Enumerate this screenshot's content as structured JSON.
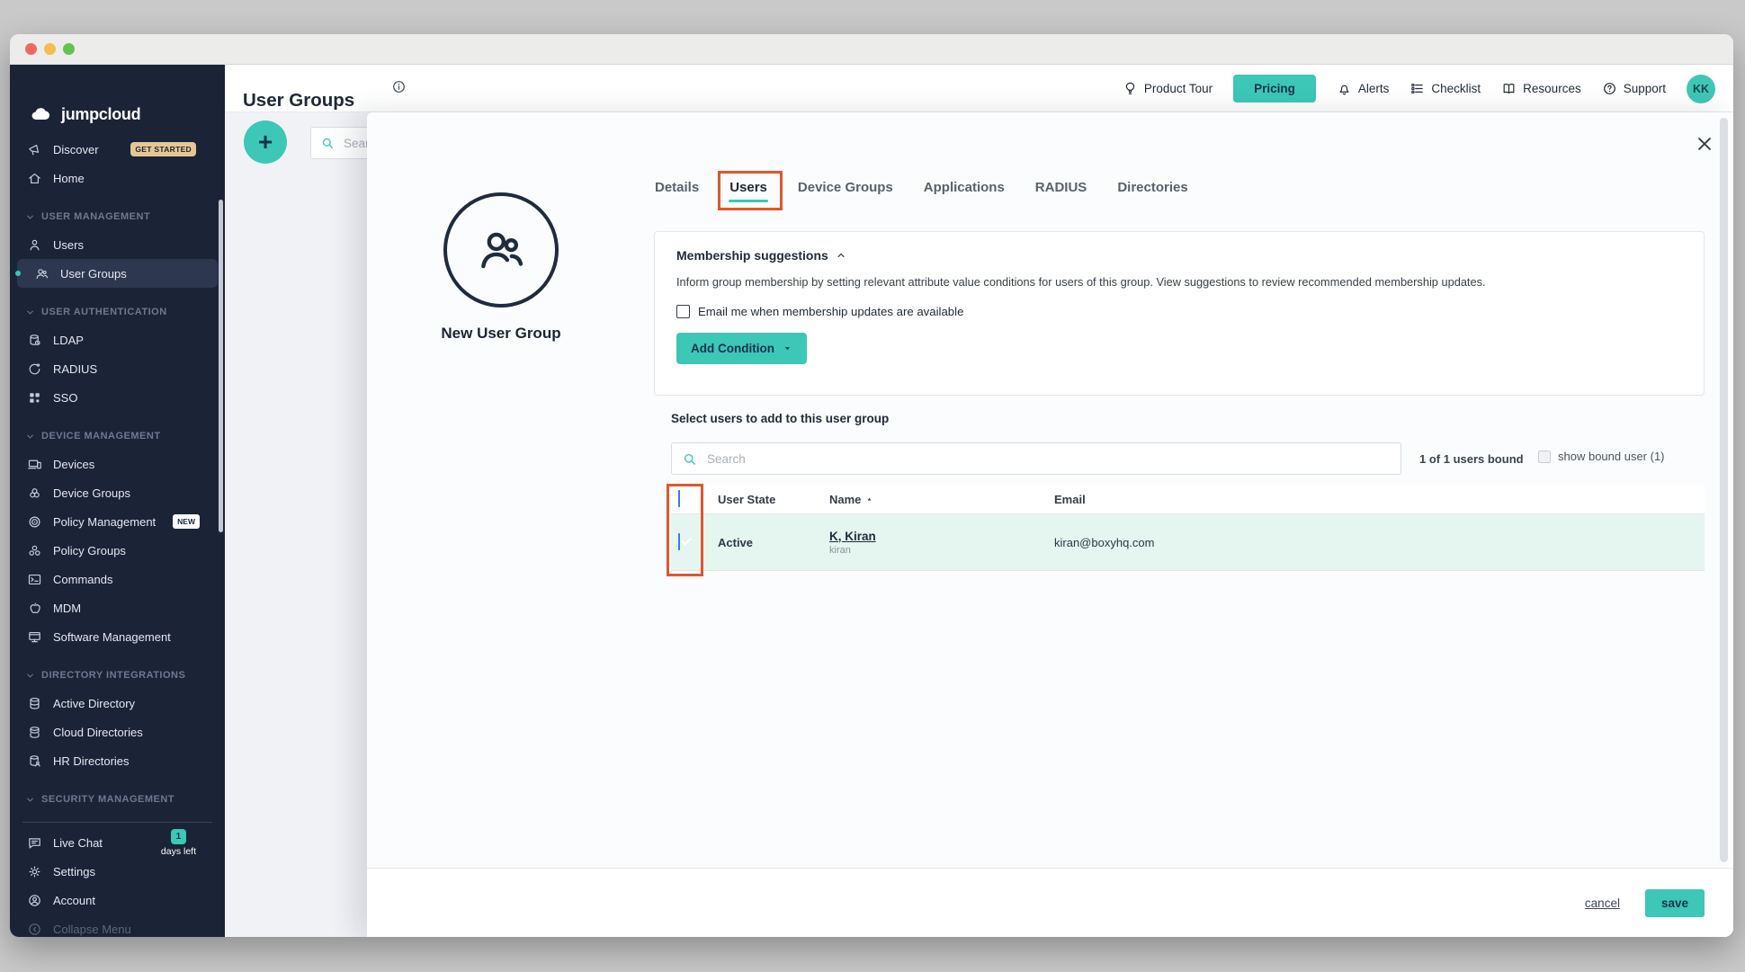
{
  "sidebar": {
    "logo": "jumpcloud",
    "discover": {
      "label": "Discover",
      "badge": "GET STARTED"
    },
    "home": "Home",
    "sec_user_mgmt": "USER MANAGEMENT",
    "users": "Users",
    "user_groups": "User Groups",
    "sec_user_auth": "USER AUTHENTICATION",
    "ldap": "LDAP",
    "radius": "RADIUS",
    "sso": "SSO",
    "sec_device_mgmt": "DEVICE MANAGEMENT",
    "devices": "Devices",
    "device_groups": "Device Groups",
    "policy_mgmt": {
      "label": "Policy Management",
      "badge": "NEW"
    },
    "policy_groups": "Policy Groups",
    "commands": "Commands",
    "mdm": "MDM",
    "software_mgmt": "Software Management",
    "sec_dir_int": "DIRECTORY INTEGRATIONS",
    "active_directory": "Active Directory",
    "cloud_directories": "Cloud Directories",
    "hr_directories": "HR Directories",
    "sec_security": "SECURITY MANAGEMENT",
    "live_chat": {
      "label": "Live Chat",
      "badge": "1",
      "badge_note": "days left"
    },
    "settings": "Settings",
    "account": "Account",
    "collapse": "Collapse Menu"
  },
  "header": {
    "title": "User Groups",
    "product_tour": "Product Tour",
    "pricing": "Pricing",
    "alerts": "Alerts",
    "checklist": "Checklist",
    "resources": "Resources",
    "support": "Support",
    "avatar": "KK"
  },
  "page": {
    "search_placeholder": "Search"
  },
  "drawer": {
    "group_name": "New User Group",
    "tabs": {
      "details": "Details",
      "users": "Users",
      "device_groups": "Device Groups",
      "applications": "Applications",
      "radius": "RADIUS",
      "directories": "Directories"
    },
    "membership": {
      "title": "Membership suggestions",
      "description": "Inform group membership by setting relevant attribute value conditions for users of this group. View suggestions to review recommended membership updates.",
      "email_opt_label": "Email me when membership updates are available",
      "add_condition": "Add Condition"
    },
    "users_section": {
      "heading": "Select users to add to this user group",
      "search_placeholder": "Search",
      "bound_summary": "1 of 1 users bound",
      "show_bound": "show bound user (1)",
      "columns": {
        "state": "User State",
        "name": "Name",
        "email": "Email"
      },
      "row": {
        "state": "Active",
        "name": "K, Kiran",
        "username": "kiran",
        "email": "kiran@boxyhq.com"
      }
    },
    "footer": {
      "cancel": "cancel",
      "save": "save"
    }
  },
  "colors": {
    "accent": "#3cc7b6",
    "sidebar_bg": "#1b2337",
    "annotation": "#e2562b",
    "checkbox_checked": "#2d7ff0",
    "row_highlight": "#e5f5f0"
  }
}
